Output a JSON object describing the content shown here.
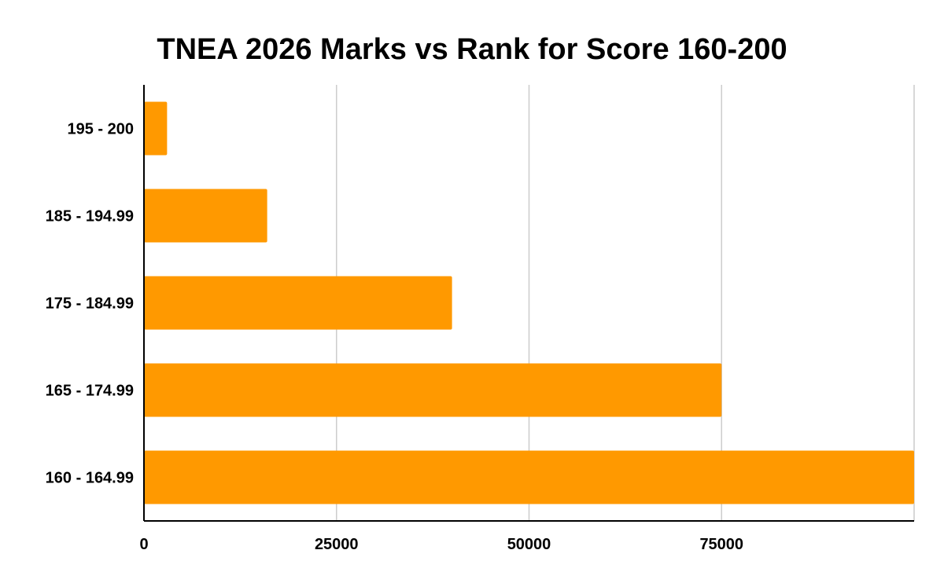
{
  "chart_data": {
    "type": "bar",
    "orientation": "horizontal",
    "title": "TNEA 2026 Marks vs Rank for Score 160-200",
    "xlabel": "",
    "ylabel": "",
    "categories": [
      "195 - 200",
      "185 - 194.99",
      "175 - 184.99",
      "165 - 174.99",
      "160 - 164.99"
    ],
    "series": [
      {
        "values": [
          3000,
          16000,
          40000,
          75000,
          100000
        ]
      }
    ],
    "xlim": [
      0,
      100000
    ],
    "xticks": [
      0,
      25000,
      50000,
      75000
    ],
    "grid": true,
    "legend": "none",
    "colors": {
      "bar": "#ff9900",
      "grid": "#cccccc",
      "axis": "#000000",
      "text": "#000000"
    }
  }
}
